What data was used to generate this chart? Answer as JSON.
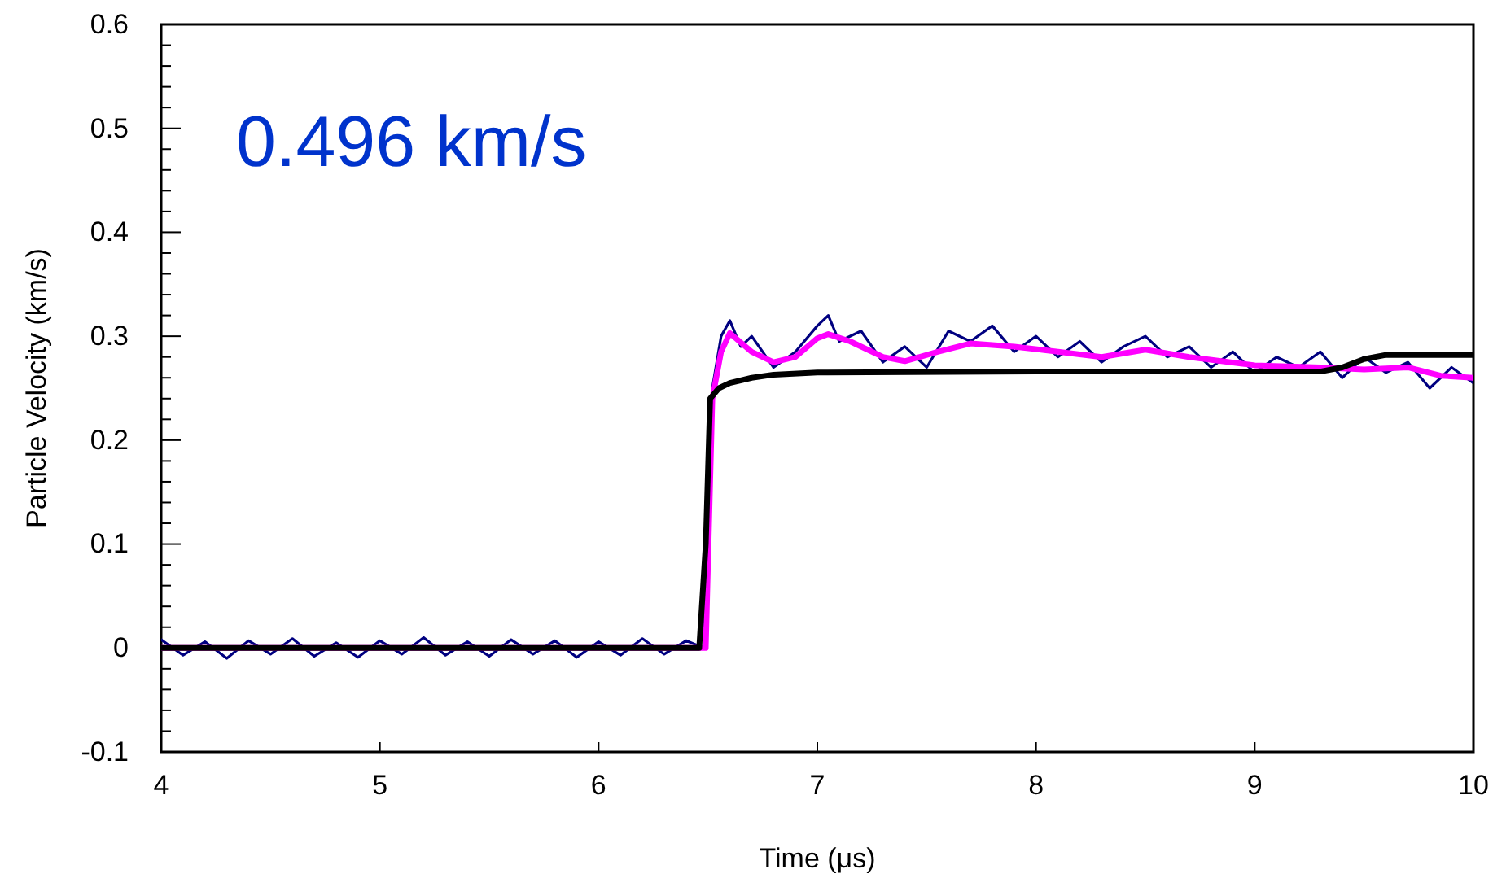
{
  "chart_data": {
    "type": "line",
    "xlabel": "Time (μs)",
    "ylabel": "Particle Velocity (km/s)",
    "annotations": [
      "0.496 km/s"
    ],
    "xlim": [
      4,
      10
    ],
    "xticks": [
      4,
      5,
      6,
      7,
      8,
      9,
      10
    ],
    "ylim": [
      -0.1,
      0.6
    ],
    "yticks": [
      -0.1,
      {
        "value": -0.08,
        "label": null
      },
      {
        "value": -0.06,
        "label": null
      },
      {
        "value": -0.04,
        "label": null
      },
      {
        "value": -0.02,
        "label": null
      },
      0,
      {
        "value": 0.02,
        "label": null
      },
      {
        "value": 0.04,
        "label": null
      },
      {
        "value": 0.06,
        "label": null
      },
      {
        "value": 0.08,
        "label": null
      },
      0.1,
      {
        "value": 0.12,
        "label": null
      },
      {
        "value": 0.14,
        "label": null
      },
      {
        "value": 0.16,
        "label": null
      },
      {
        "value": 0.18,
        "label": null
      },
      0.2,
      {
        "value": 0.22,
        "label": null
      },
      {
        "value": 0.24,
        "label": null
      },
      {
        "value": 0.26,
        "label": null
      },
      {
        "value": 0.28,
        "label": null
      },
      0.3,
      {
        "value": 0.32,
        "label": null
      },
      {
        "value": 0.34,
        "label": null
      },
      {
        "value": 0.36,
        "label": null
      },
      {
        "value": 0.38,
        "label": null
      },
      0.4,
      {
        "value": 0.42,
        "label": null
      },
      {
        "value": 0.44,
        "label": null
      },
      {
        "value": 0.46,
        "label": null
      },
      {
        "value": 0.48,
        "label": null
      },
      0.5,
      {
        "value": 0.52,
        "label": null
      },
      {
        "value": 0.54,
        "label": null
      },
      {
        "value": 0.56,
        "label": null
      },
      {
        "value": 0.58,
        "label": null
      },
      0.6
    ],
    "grid": false,
    "marker": "none",
    "line_style": "solid",
    "series": [
      {
        "color": "#000080",
        "x": [
          4,
          4.1,
          4.2,
          4.3,
          4.4,
          4.5,
          4.6,
          4.7,
          4.8,
          4.9,
          5,
          5.1,
          5.2,
          5.3,
          5.4,
          5.5,
          5.6,
          5.7,
          5.8,
          5.9,
          6,
          6.1,
          6.2,
          6.3,
          6.4,
          6.48,
          6.52,
          6.56,
          6.6,
          6.65,
          6.7,
          6.8,
          6.9,
          7,
          7.05,
          7.1,
          7.2,
          7.3,
          7.4,
          7.5,
          7.6,
          7.7,
          7.8,
          7.9,
          8,
          8.1,
          8.2,
          8.3,
          8.4,
          8.5,
          8.6,
          8.7,
          8.8,
          8.9,
          9,
          9.1,
          9.2,
          9.3,
          9.4,
          9.5,
          9.6,
          9.7,
          9.8,
          9.9,
          10
        ],
        "values": [
          0.008,
          -0.007,
          0.006,
          -0.01,
          0.007,
          -0.006,
          0.009,
          -0.008,
          0.005,
          -0.009,
          0.007,
          -0.006,
          0.01,
          -0.007,
          0.006,
          -0.008,
          0.008,
          -0.006,
          0.007,
          -0.009,
          0.006,
          -0.007,
          0.009,
          -0.006,
          0.007,
          0.0,
          0.25,
          0.3,
          0.315,
          0.29,
          0.3,
          0.27,
          0.285,
          0.31,
          0.32,
          0.295,
          0.305,
          0.275,
          0.29,
          0.27,
          0.305,
          0.295,
          0.31,
          0.285,
          0.3,
          0.28,
          0.295,
          0.275,
          0.29,
          0.3,
          0.28,
          0.29,
          0.27,
          0.285,
          0.265,
          0.28,
          0.27,
          0.285,
          0.26,
          0.28,
          0.265,
          0.275,
          0.25,
          0.27,
          0.255
        ]
      },
      {
        "color": "#ff00ff",
        "x": [
          4,
          6.49,
          6.52,
          6.56,
          6.6,
          6.7,
          6.8,
          6.9,
          7,
          7.05,
          7.15,
          7.3,
          7.4,
          7.55,
          7.7,
          7.9,
          8.1,
          8.3,
          8.5,
          8.7,
          9,
          9.3,
          9.5,
          9.7,
          9.85,
          10
        ],
        "values": [
          0,
          0,
          0.24,
          0.285,
          0.303,
          0.285,
          0.275,
          0.28,
          0.298,
          0.302,
          0.295,
          0.28,
          0.276,
          0.285,
          0.293,
          0.29,
          0.285,
          0.28,
          0.287,
          0.28,
          0.272,
          0.27,
          0.268,
          0.27,
          0.262,
          0.26
        ]
      },
      {
        "color": "#000000",
        "x": [
          4,
          6.46,
          6.49,
          6.51,
          6.55,
          6.6,
          6.7,
          6.8,
          7,
          8,
          9,
          9.3,
          9.4,
          9.5,
          9.6,
          10
        ],
        "values": [
          0,
          0,
          0.1,
          0.24,
          0.25,
          0.255,
          0.26,
          0.263,
          0.265,
          0.266,
          0.266,
          0.266,
          0.27,
          0.278,
          0.282,
          0.282
        ]
      }
    ]
  }
}
